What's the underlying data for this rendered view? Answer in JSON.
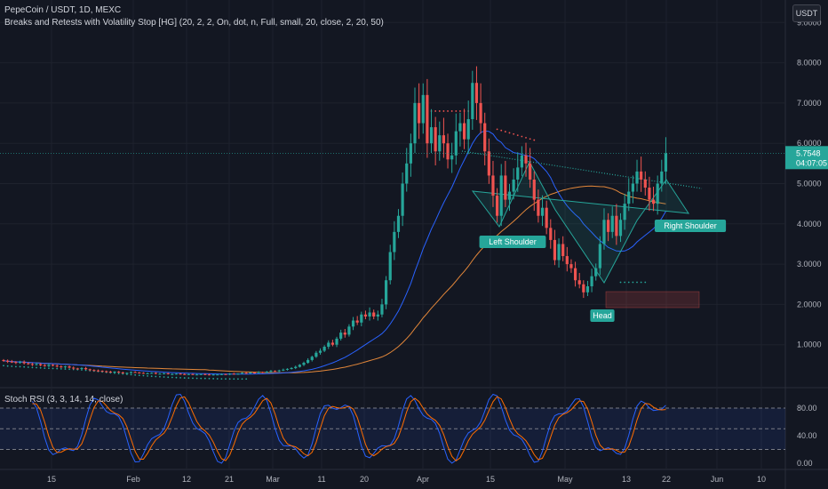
{
  "header": {
    "symbol_line": "PepeCoin / USDT, 1D, MEXC",
    "indicator_line": "Breaks and Retests with Volatility Stop [HG] (20, 2, 2, On, dot, n, Full, small, 20, close, 2, 20, 50)"
  },
  "currency_button": "USDT",
  "rsi_title": "Stoch RSI (3, 3, 14, 14, close)",
  "price_badge": {
    "price": "5.7548",
    "countdown": "04:07:05"
  },
  "colors": {
    "background": "#131722",
    "bull": "#26a69a",
    "bear": "#ef5350",
    "ma_fast": "#2962ff",
    "ma_slow": "#e3873a",
    "pattern": "#26a69a",
    "k_line": "#2962ff",
    "d_line": "#ff6d00"
  },
  "chart_data": [
    {
      "type": "candlestick",
      "title": "PepeCoin / USDT, 1D, MEXC",
      "x_ticks": [
        "15",
        "Feb",
        "12",
        "21",
        "Mar",
        "11",
        "20",
        "Apr",
        "15",
        "May",
        "13",
        "22",
        "Jun",
        "10"
      ],
      "y_ticks": [
        "1.0000",
        "2.0000",
        "3.0000",
        "4.0000",
        "5.0000",
        "6.0000",
        "7.0000",
        "8.0000",
        "9.0000"
      ],
      "ylim": [
        0,
        9.4
      ],
      "annotations": [
        "Left Shoulder",
        "Head",
        "Right Shoulder"
      ],
      "last_price": 5.7548,
      "closes": [
        0.6,
        0.58,
        0.57,
        0.55,
        0.57,
        0.54,
        0.52,
        0.5,
        0.52,
        0.49,
        0.47,
        0.5,
        0.48,
        0.46,
        0.44,
        0.46,
        0.43,
        0.41,
        0.4,
        0.42,
        0.39,
        0.37,
        0.36,
        0.35,
        0.34,
        0.33,
        0.32,
        0.33,
        0.31,
        0.3,
        0.3,
        0.32,
        0.31,
        0.3,
        0.29,
        0.29,
        0.3,
        0.28,
        0.28,
        0.29,
        0.27,
        0.27,
        0.28,
        0.27,
        0.26,
        0.27,
        0.26,
        0.26,
        0.27,
        0.26,
        0.25,
        0.26,
        0.26,
        0.27,
        0.26,
        0.28,
        0.27,
        0.28,
        0.3,
        0.29,
        0.31,
        0.3,
        0.32,
        0.31,
        0.33,
        0.35,
        0.34,
        0.36,
        0.38,
        0.4,
        0.42,
        0.45,
        0.5,
        0.55,
        0.62,
        0.7,
        0.8,
        0.85,
        0.95,
        1.05,
        1.0,
        1.15,
        1.3,
        1.25,
        1.45,
        1.6,
        1.55,
        1.75,
        1.7,
        1.8,
        1.7,
        1.75,
        2.0,
        2.6,
        3.3,
        3.8,
        4.2,
        5.0,
        5.5,
        6.0,
        7.0,
        6.5,
        7.2,
        6.0,
        6.4,
        5.8,
        6.2,
        6.0,
        5.6,
        5.7,
        6.3,
        6.5,
        6.1,
        6.6,
        7.5,
        7.0,
        6.5,
        5.8,
        5.2,
        4.7,
        4.2,
        5.2,
        4.6,
        4.8,
        5.1,
        5.4,
        5.7,
        5.5,
        5.1,
        4.6,
        4.2,
        4.4,
        3.9,
        3.6,
        3.1,
        3.5,
        3.2,
        3.0,
        2.9,
        2.6,
        2.5,
        2.3,
        2.45,
        2.7,
        2.9,
        3.5,
        4.1,
        3.8,
        4.2,
        3.7,
        4.1,
        4.5,
        4.8,
        5.0,
        5.3,
        5.1,
        4.9,
        4.6,
        4.5,
        5.0,
        5.3,
        5.75
      ],
      "series": [
        {
          "name": "",
          "type": "moving-average-fast"
        },
        {
          "name": "",
          "type": "moving-average-slow"
        }
      ]
    },
    {
      "type": "line",
      "title": "Stoch RSI (3, 3, 14, 14, close)",
      "y_ticks": [
        "0.00",
        "40.00",
        "80.00"
      ],
      "bands": [
        80,
        50,
        20
      ],
      "ylim": [
        -12,
        105
      ],
      "last_value": 78
    }
  ]
}
